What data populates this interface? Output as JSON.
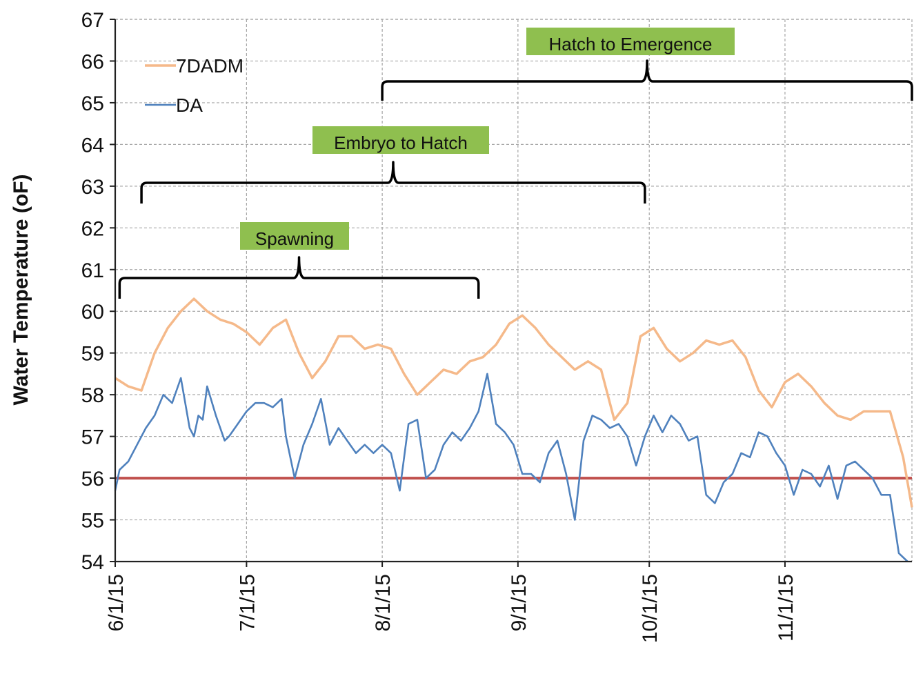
{
  "chart_data": {
    "type": "line",
    "title": "",
    "xlabel": "",
    "ylabel": "Water Temperature (oF)",
    "ylim": [
      54,
      67
    ],
    "yticks": [
      54,
      55,
      56,
      57,
      58,
      59,
      60,
      61,
      62,
      63,
      64,
      65,
      66,
      67
    ],
    "xlim": [
      "6/1/15",
      "11/30/15"
    ],
    "xticks": [
      "6/1/15",
      "7/1/15",
      "8/1/15",
      "9/1/15",
      "10/1/15",
      "11/1/15"
    ],
    "grid": true,
    "legend": "top-left",
    "reference_line": {
      "value": 56,
      "color": "#c0504d"
    },
    "series": [
      {
        "name": "7DADM",
        "color": "#f5b98a",
        "x": [
          "6/1/15",
          "6/4/15",
          "6/7/15",
          "6/10/15",
          "6/13/15",
          "6/16/15",
          "6/19/15",
          "6/22/15",
          "6/25/15",
          "6/28/15",
          "7/1/15",
          "7/4/15",
          "7/7/15",
          "7/10/15",
          "7/13/15",
          "7/16/15",
          "7/19/15",
          "7/22/15",
          "7/25/15",
          "7/28/15",
          "7/31/15",
          "8/3/15",
          "8/6/15",
          "8/9/15",
          "8/12/15",
          "8/15/15",
          "8/18/15",
          "8/21/15",
          "8/24/15",
          "8/27/15",
          "8/30/15",
          "9/2/15",
          "9/5/15",
          "9/8/15",
          "9/11/15",
          "9/14/15",
          "9/17/15",
          "9/20/15",
          "9/23/15",
          "9/26/15",
          "9/29/15",
          "10/2/15",
          "10/5/15",
          "10/8/15",
          "10/11/15",
          "10/14/15",
          "10/17/15",
          "10/20/15",
          "10/23/15",
          "10/26/15",
          "10/29/15",
          "11/1/15",
          "11/4/15",
          "11/7/15",
          "11/10/15",
          "11/13/15",
          "11/16/15",
          "11/19/15",
          "11/22/15",
          "11/25/15",
          "11/28/15",
          "11/30/15"
        ],
        "values": [
          58.4,
          58.2,
          58.1,
          59.0,
          59.6,
          60.0,
          60.3,
          60.0,
          59.8,
          59.7,
          59.5,
          59.2,
          59.6,
          59.8,
          59.0,
          58.4,
          58.8,
          59.4,
          59.4,
          59.1,
          59.2,
          59.1,
          58.5,
          58.0,
          58.3,
          58.6,
          58.5,
          58.8,
          58.9,
          59.2,
          59.7,
          59.9,
          59.6,
          59.2,
          58.9,
          58.6,
          58.8,
          58.6,
          57.4,
          57.8,
          59.4,
          59.6,
          59.1,
          58.8,
          59.0,
          59.3,
          59.2,
          59.3,
          58.9,
          58.1,
          57.7,
          58.3,
          58.5,
          58.2,
          57.8,
          57.5,
          57.4,
          57.6,
          57.6,
          57.6,
          56.5,
          55.3
        ]
      },
      {
        "name": "DA",
        "color": "#4f81bd",
        "x": [
          "6/1/15",
          "6/2/15",
          "6/4/15",
          "6/6/15",
          "6/8/15",
          "6/10/15",
          "6/12/15",
          "6/14/15",
          "6/16/15",
          "6/18/15",
          "6/19/15",
          "6/20/15",
          "6/21/15",
          "6/22/15",
          "6/24/15",
          "6/26/15",
          "6/27/15",
          "6/29/15",
          "7/1/15",
          "7/3/15",
          "7/5/15",
          "7/7/15",
          "7/9/15",
          "7/10/15",
          "7/12/15",
          "7/14/15",
          "7/16/15",
          "7/18/15",
          "7/20/15",
          "7/22/15",
          "7/24/15",
          "7/26/15",
          "7/28/15",
          "7/30/15",
          "8/1/15",
          "8/3/15",
          "8/5/15",
          "8/7/15",
          "8/9/15",
          "8/11/15",
          "8/13/15",
          "8/15/15",
          "8/17/15",
          "8/19/15",
          "8/21/15",
          "8/22/15",
          "8/23/15",
          "8/25/15",
          "8/27/15",
          "8/29/15",
          "8/31/15",
          "9/2/15",
          "9/4/15",
          "9/6/15",
          "9/8/15",
          "9/10/15",
          "9/12/15",
          "9/14/15",
          "9/16/15",
          "9/18/15",
          "9/20/15",
          "9/22/15",
          "9/24/15",
          "9/26/15",
          "9/28/15",
          "9/30/15",
          "10/2/15",
          "10/4/15",
          "10/6/15",
          "10/8/15",
          "10/10/15",
          "10/12/15",
          "10/14/15",
          "10/16/15",
          "10/18/15",
          "10/20/15",
          "10/22/15",
          "10/24/15",
          "10/26/15",
          "10/28/15",
          "10/30/15",
          "11/1/15",
          "11/3/15",
          "11/5/15",
          "11/7/15",
          "11/9/15",
          "11/11/15",
          "11/13/15",
          "11/15/15",
          "11/17/15",
          "11/19/15",
          "11/21/15",
          "11/23/15",
          "11/25/15",
          "11/27/15",
          "11/29/15"
        ],
        "values": [
          55.7,
          56.2,
          56.4,
          56.8,
          57.2,
          57.5,
          58.0,
          57.8,
          58.4,
          57.2,
          57.0,
          57.5,
          57.4,
          58.2,
          57.5,
          56.9,
          57.0,
          57.3,
          57.6,
          57.8,
          57.8,
          57.7,
          57.9,
          57.0,
          56.0,
          56.8,
          57.3,
          57.9,
          56.8,
          57.2,
          56.9,
          56.6,
          56.8,
          56.6,
          56.8,
          56.6,
          55.7,
          57.3,
          57.4,
          56.0,
          56.2,
          56.8,
          57.1,
          56.9,
          57.2,
          57.4,
          57.6,
          58.5,
          57.3,
          57.1,
          56.8,
          56.1,
          56.1,
          55.9,
          56.6,
          56.9,
          56.1,
          55.0,
          56.9,
          57.5,
          57.4,
          57.2,
          57.3,
          57.0,
          56.3,
          57.0,
          57.5,
          57.1,
          57.5,
          57.3,
          56.9,
          57.0,
          55.6,
          55.4,
          55.9,
          56.1,
          56.6,
          56.5,
          57.1,
          57.0,
          56.6,
          56.3,
          55.6,
          56.2,
          56.1,
          55.8,
          56.3,
          55.5,
          56.3,
          56.4,
          56.2,
          56.0,
          55.6,
          55.6,
          54.2,
          54.0
        ]
      }
    ],
    "annotations": [
      {
        "label": "Hatch to Emergence",
        "start": "8/1/15",
        "end": "11/30/15",
        "label_color": "#8fbf4f"
      },
      {
        "label": "Embryo to Hatch",
        "start": "6/7/15",
        "end": "9/30/15",
        "label_color": "#8fbf4f"
      },
      {
        "label": "Spawning",
        "start": "6/2/15",
        "end": "8/23/15",
        "label_color": "#8fbf4f"
      }
    ]
  }
}
